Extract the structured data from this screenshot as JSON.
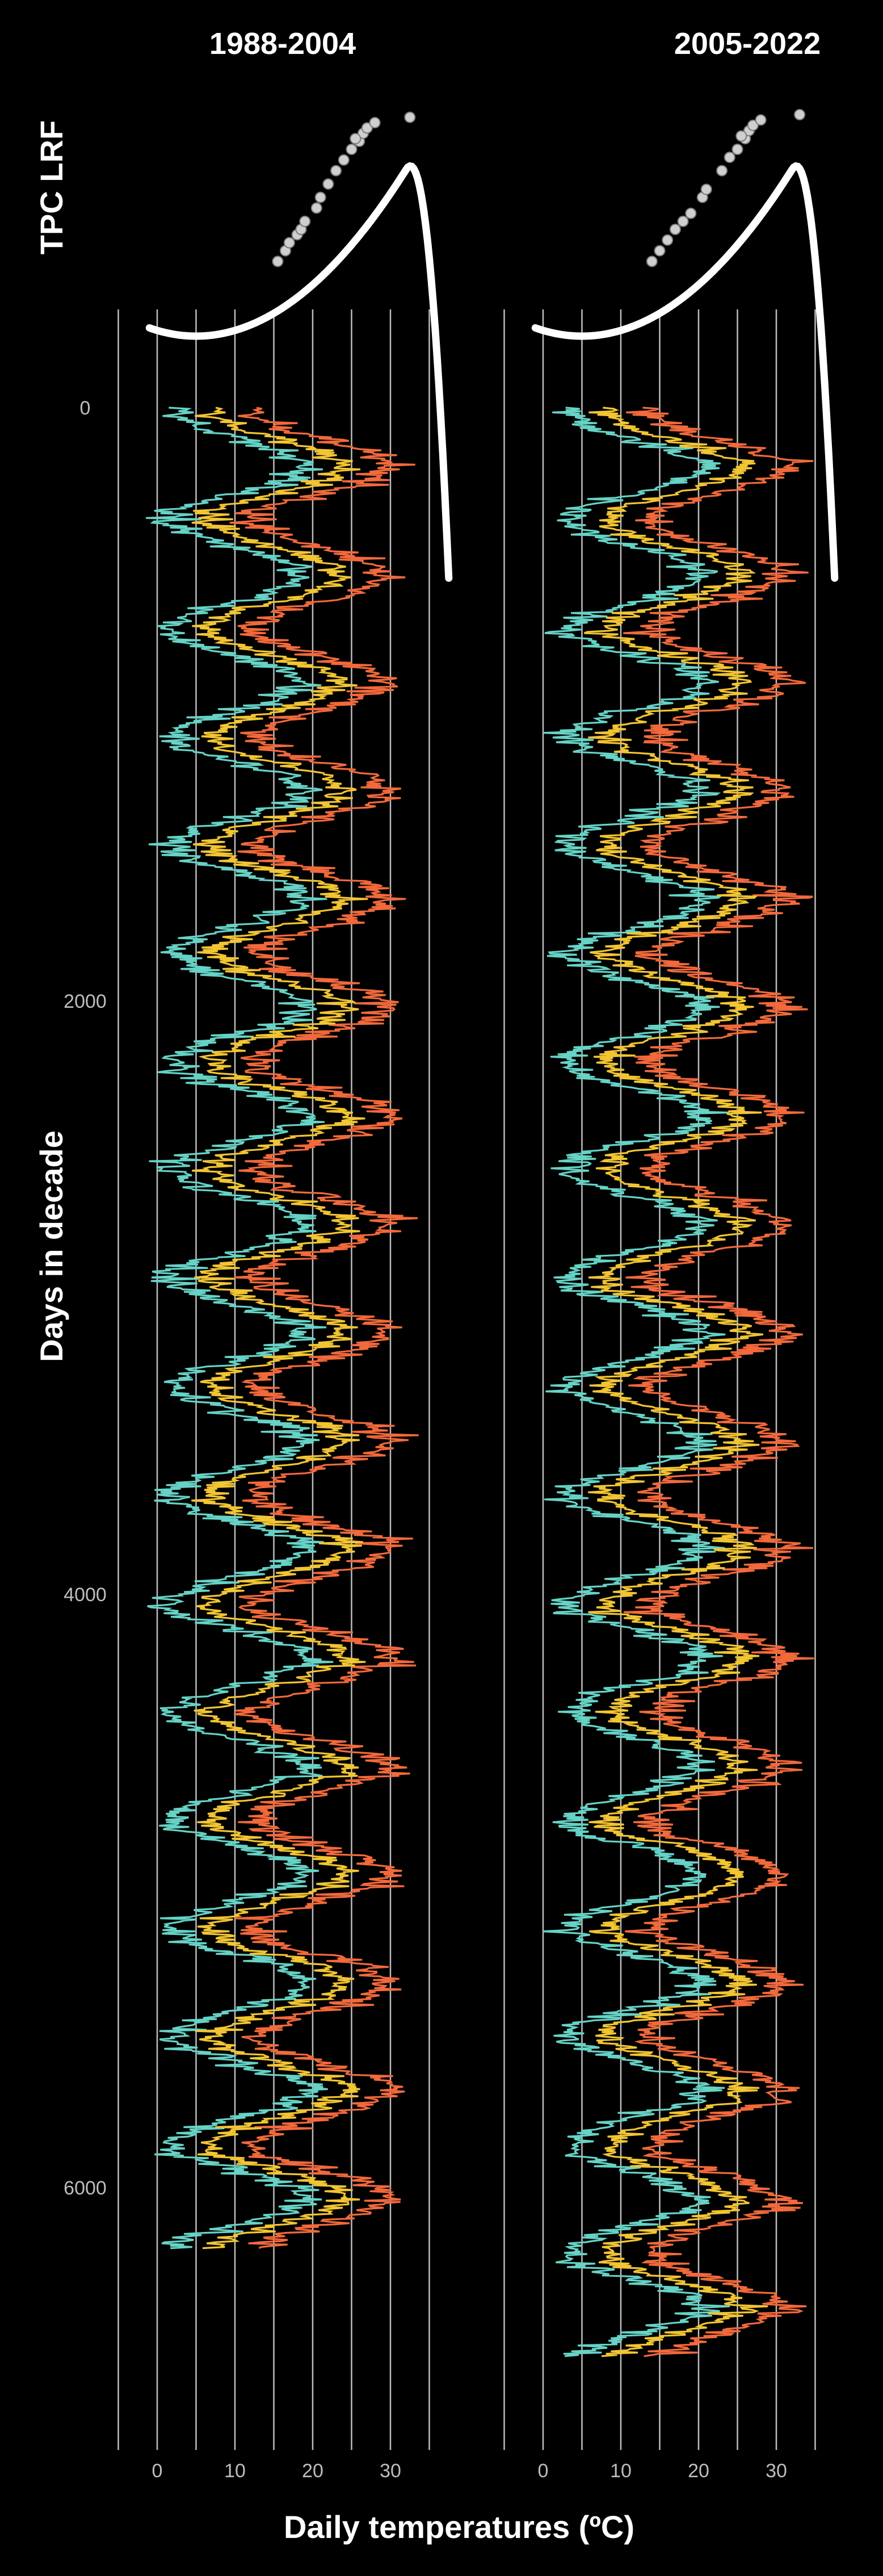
{
  "chart_data": {
    "type": "line",
    "y_axis_title": "Days in decade",
    "x_axis_title": "Daily temperatures (ºC)",
    "strip_title": "TPC LRF",
    "y_ticks": [
      0,
      2000,
      4000,
      6000
    ],
    "y_range": [
      -400,
      6900
    ],
    "x_ticks": [
      0,
      10,
      20,
      30
    ],
    "x_gridlines": [
      -5,
      0,
      5,
      10,
      15,
      20,
      25,
      30,
      35
    ],
    "x_range": [
      -5,
      35
    ],
    "grid": true,
    "series_colors": {
      "min": "#66d3c6",
      "mean": "#f2c533",
      "max": "#f2693c"
    },
    "panels": [
      {
        "title": "1988-2004",
        "days": 6205,
        "tpc_points": [
          [
            15.5,
            0.18
          ],
          [
            16.5,
            0.22
          ],
          [
            17.0,
            0.25
          ],
          [
            18.0,
            0.28
          ],
          [
            18.5,
            0.3
          ],
          [
            19.0,
            0.33
          ],
          [
            20.5,
            0.38
          ],
          [
            21.0,
            0.42
          ],
          [
            22.0,
            0.47
          ],
          [
            23.0,
            0.52
          ],
          [
            24.0,
            0.56
          ],
          [
            25.0,
            0.6
          ],
          [
            26.0,
            0.63
          ],
          [
            26.5,
            0.66
          ],
          [
            27.0,
            0.68
          ],
          [
            25.5,
            0.64
          ],
          [
            28.0,
            0.7
          ],
          [
            32.5,
            0.72
          ]
        ]
      },
      {
        "title": "2005-2022",
        "days": 6570,
        "tpc_points": [
          [
            14.0,
            0.18
          ],
          [
            15.0,
            0.22
          ],
          [
            16.0,
            0.26
          ],
          [
            17.0,
            0.3
          ],
          [
            18.0,
            0.33
          ],
          [
            19.0,
            0.36
          ],
          [
            20.5,
            0.42
          ],
          [
            21.0,
            0.45
          ],
          [
            23.0,
            0.52
          ],
          [
            24.0,
            0.57
          ],
          [
            25.0,
            0.6
          ],
          [
            26.0,
            0.64
          ],
          [
            26.5,
            0.67
          ],
          [
            27.0,
            0.69
          ],
          [
            25.5,
            0.65
          ],
          [
            28.0,
            0.71
          ],
          [
            33.0,
            0.73
          ]
        ]
      }
    ]
  }
}
